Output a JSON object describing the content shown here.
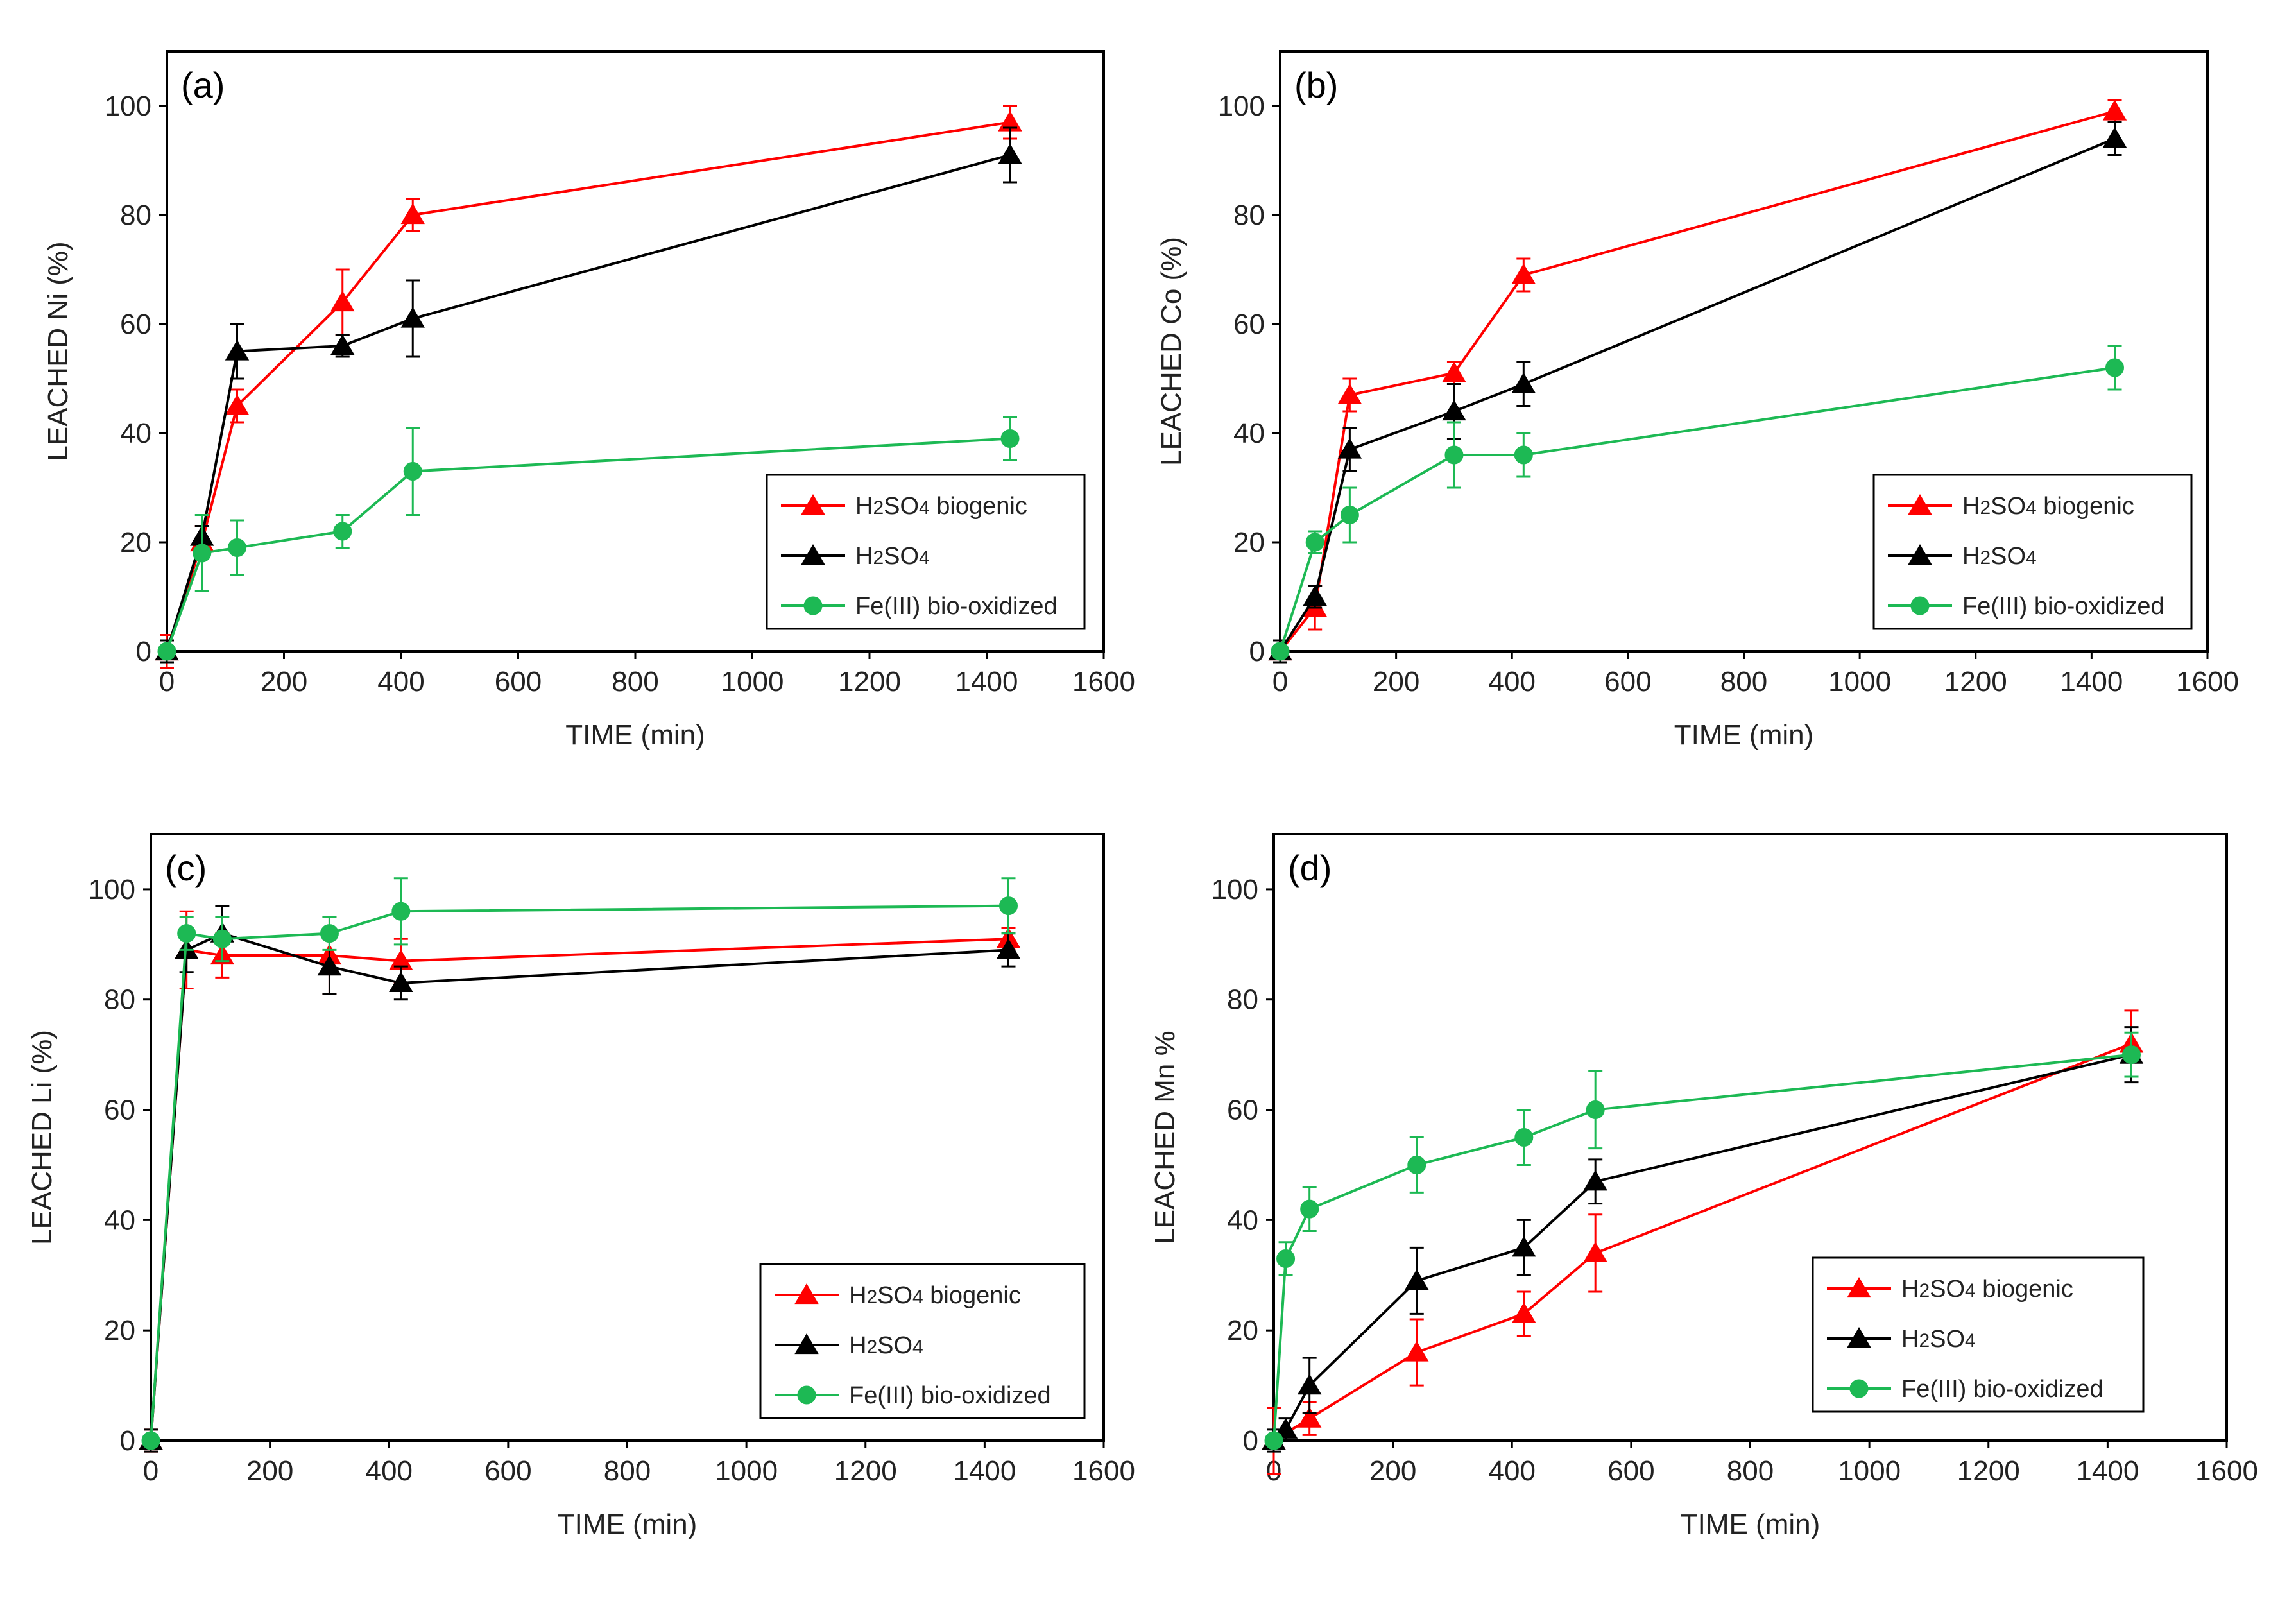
{
  "chart_data": [
    {
      "type": "line",
      "panel_label": "(a)",
      "xlabel": "TIME (min)",
      "ylabel": "LEACHED Ni (%)",
      "xlim": [
        0,
        1600
      ],
      "ylim": [
        0,
        110
      ],
      "xticks": [
        0,
        200,
        400,
        600,
        800,
        1000,
        1200,
        1400,
        1600
      ],
      "yticks": [
        0,
        20,
        40,
        60,
        80,
        100
      ],
      "legend_position": "bottom-right",
      "series": [
        {
          "name": "H2SO4 biogenic",
          "color": "#ff0000",
          "marker": "triangle",
          "x": [
            0,
            60,
            120,
            300,
            420,
            1440
          ],
          "y": [
            0,
            20,
            45,
            64,
            80,
            97
          ],
          "err": [
            3,
            3,
            3,
            6,
            3,
            3
          ]
        },
        {
          "name": "H2SO4",
          "color": "#000000",
          "marker": "triangle",
          "x": [
            0,
            60,
            120,
            300,
            420,
            1440
          ],
          "y": [
            0,
            21,
            55,
            56,
            61,
            91
          ],
          "err": [
            2,
            2,
            5,
            2,
            7,
            5
          ]
        },
        {
          "name": "Fe(III) bio-oxidized",
          "color": "#1db954",
          "marker": "circle",
          "x": [
            0,
            60,
            120,
            300,
            420,
            1440
          ],
          "y": [
            0,
            18,
            19,
            22,
            33,
            39
          ],
          "err": [
            1,
            7,
            5,
            3,
            8,
            4
          ]
        }
      ]
    },
    {
      "type": "line",
      "panel_label": "(b)",
      "xlabel": "TIME (min)",
      "ylabel": "LEACHED Co (%)",
      "xlim": [
        0,
        1600
      ],
      "ylim": [
        0,
        110
      ],
      "xticks": [
        0,
        200,
        400,
        600,
        800,
        1000,
        1200,
        1400,
        1600
      ],
      "yticks": [
        0,
        20,
        40,
        60,
        80,
        100
      ],
      "legend_position": "bottom-right",
      "series": [
        {
          "name": "H2SO4 biogenic",
          "color": "#ff0000",
          "marker": "triangle",
          "x": [
            0,
            60,
            120,
            300,
            420,
            1440
          ],
          "y": [
            0,
            8,
            47,
            51,
            69,
            99
          ],
          "err": [
            2,
            4,
            3,
            2,
            3,
            2
          ]
        },
        {
          "name": "H2SO4",
          "color": "#000000",
          "marker": "triangle",
          "x": [
            0,
            60,
            120,
            300,
            420,
            1440
          ],
          "y": [
            0,
            10,
            37,
            44,
            49,
            94
          ],
          "err": [
            2,
            2,
            4,
            5,
            4,
            3
          ]
        },
        {
          "name": "Fe(III) bio-oxidized",
          "color": "#1db954",
          "marker": "circle",
          "x": [
            0,
            60,
            120,
            300,
            420,
            1440
          ],
          "y": [
            0,
            20,
            25,
            36,
            36,
            52
          ],
          "err": [
            1,
            2,
            5,
            6,
            4,
            4
          ]
        }
      ]
    },
    {
      "type": "line",
      "panel_label": "(c)",
      "xlabel": "TIME (min)",
      "ylabel": "LEACHED Li (%)",
      "xlim": [
        0,
        1600
      ],
      "ylim": [
        0,
        110
      ],
      "xticks": [
        0,
        200,
        400,
        600,
        800,
        1000,
        1200,
        1400,
        1600
      ],
      "yticks": [
        0,
        20,
        40,
        60,
        80,
        100
      ],
      "legend_position": "bottom-right",
      "series": [
        {
          "name": "H2SO4 biogenic",
          "color": "#ff0000",
          "marker": "triangle",
          "x": [
            0,
            60,
            120,
            300,
            420,
            1440
          ],
          "y": [
            0,
            89,
            88,
            88,
            87,
            91
          ],
          "err": [
            2,
            7,
            4,
            7,
            4,
            2
          ]
        },
        {
          "name": "H2SO4",
          "color": "#000000",
          "marker": "triangle",
          "x": [
            0,
            60,
            120,
            300,
            420,
            1440
          ],
          "y": [
            0,
            89,
            92,
            86,
            83,
            89
          ],
          "err": [
            2,
            4,
            5,
            5,
            3,
            3
          ]
        },
        {
          "name": "Fe(III) bio-oxidized",
          "color": "#1db954",
          "marker": "circle",
          "x": [
            0,
            60,
            120,
            300,
            420,
            1440
          ],
          "y": [
            0,
            92,
            91,
            92,
            96,
            97
          ],
          "err": [
            1,
            3,
            4,
            3,
            6,
            5
          ]
        }
      ]
    },
    {
      "type": "line",
      "panel_label": "(d)",
      "xlabel": "TIME (min)",
      "ylabel": "LEACHED Mn %",
      "xlim": [
        0,
        1600
      ],
      "ylim": [
        0,
        110
      ],
      "xticks": [
        0,
        200,
        400,
        600,
        800,
        1000,
        1200,
        1400,
        1600
      ],
      "yticks": [
        0,
        20,
        40,
        60,
        80,
        100
      ],
      "legend_position": "bottom-right",
      "series": [
        {
          "name": "H2SO4 biogenic",
          "color": "#ff0000",
          "marker": "triangle",
          "x": [
            0,
            60,
            240,
            420,
            540,
            1440
          ],
          "y": [
            0,
            4,
            16,
            23,
            34,
            72
          ],
          "err": [
            6,
            3,
            6,
            4,
            7,
            6
          ]
        },
        {
          "name": "H2SO4",
          "color": "#000000",
          "marker": "triangle",
          "x": [
            0,
            20,
            60,
            240,
            420,
            540,
            1440
          ],
          "y": [
            0,
            2,
            10,
            29,
            35,
            47,
            70
          ],
          "err": [
            2,
            2,
            5,
            6,
            5,
            4,
            5
          ]
        },
        {
          "name": "Fe(III) bio-oxidized",
          "color": "#1db954",
          "marker": "circle",
          "x": [
            0,
            20,
            60,
            240,
            420,
            540,
            1440
          ],
          "y": [
            0,
            33,
            42,
            50,
            55,
            60,
            70
          ],
          "err": [
            1,
            3,
            4,
            5,
            5,
            7,
            4
          ]
        }
      ]
    }
  ]
}
